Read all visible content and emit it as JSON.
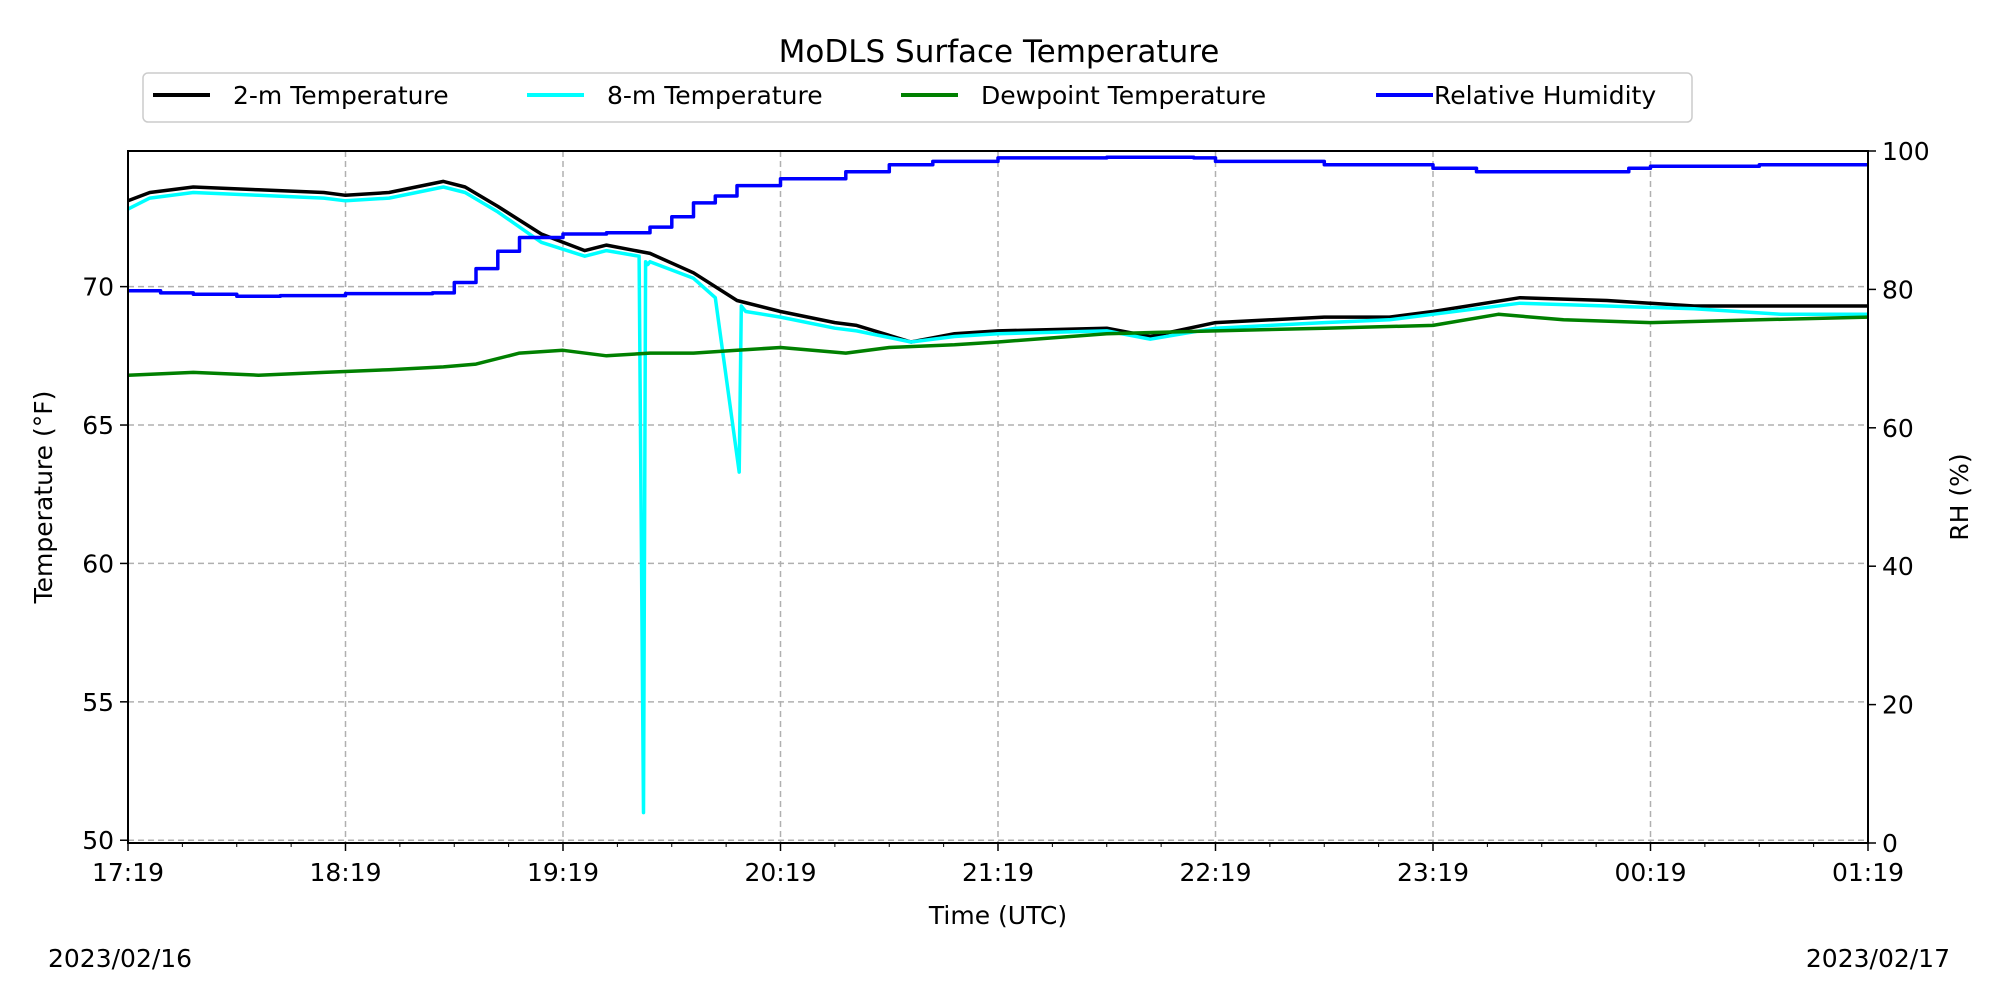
{
  "chart_data": {
    "type": "line",
    "title": "MoDLS Surface Temperature",
    "xlabel": "Time (UTC)",
    "ylabel": "Temperature ($^\\circ$F)",
    "ylabel_display": "Temperature (°F)",
    "y2label": "RH (%)",
    "x_ticks": [
      "17:19",
      "18:19",
      "19:19",
      "20:19",
      "21:19",
      "22:19",
      "23:19",
      "00:19",
      "01:19"
    ],
    "x_tick_hours": [
      0,
      1,
      2,
      3,
      4,
      5,
      6,
      7,
      8
    ],
    "xlim_hours": [
      0,
      8
    ],
    "ylim": [
      49.9,
      74.9
    ],
    "y_ticks": [
      50,
      55,
      60,
      65,
      70
    ],
    "y2lim": [
      0,
      100
    ],
    "y2_ticks": [
      0,
      20,
      40,
      60,
      80,
      100
    ],
    "grid": true,
    "legend_position": "top",
    "date_start": "2023/02/16",
    "date_end": "2023/02/17",
    "series": [
      {
        "name": "2-m Temperature",
        "color": "#000000",
        "axis": "left",
        "x_hours": [
          0.0,
          0.1,
          0.3,
          0.6,
          0.9,
          1.0,
          1.2,
          1.45,
          1.55,
          1.7,
          1.9,
          2.1,
          2.2,
          2.4,
          2.6,
          2.8,
          3.0,
          3.25,
          3.35,
          3.6,
          3.8,
          4.0,
          4.5,
          4.7,
          5.0,
          5.5,
          5.8,
          6.0,
          6.4,
          6.8,
          7.2,
          7.6,
          7.8,
          8.0
        ],
        "values": [
          73.1,
          73.4,
          73.6,
          73.5,
          73.4,
          73.3,
          73.4,
          73.8,
          73.6,
          72.9,
          71.9,
          71.3,
          71.5,
          71.2,
          70.5,
          69.5,
          69.1,
          68.7,
          68.6,
          68.0,
          68.3,
          68.4,
          68.5,
          68.2,
          68.7,
          68.9,
          68.9,
          69.1,
          69.6,
          69.5,
          69.3,
          69.3,
          69.3,
          69.3
        ]
      },
      {
        "name": "8-m Temperature",
        "color": "#00ffff",
        "axis": "left",
        "x_hours": [
          0.0,
          0.1,
          0.3,
          0.6,
          0.9,
          1.0,
          1.2,
          1.45,
          1.55,
          1.7,
          1.9,
          2.1,
          2.2,
          2.35,
          2.37,
          2.38,
          2.39,
          2.4,
          2.6,
          2.7,
          2.81,
          2.82,
          2.83,
          2.84,
          3.0,
          3.25,
          3.35,
          3.6,
          3.8,
          4.0,
          4.5,
          4.7,
          5.0,
          5.5,
          5.8,
          6.0,
          6.4,
          6.8,
          7.2,
          7.6,
          7.8,
          8.0
        ],
        "values": [
          72.8,
          73.2,
          73.4,
          73.3,
          73.2,
          73.1,
          73.2,
          73.6,
          73.4,
          72.7,
          71.6,
          71.1,
          71.3,
          71.1,
          51.0,
          70.9,
          70.8,
          70.9,
          70.3,
          69.6,
          63.3,
          69.3,
          69.2,
          69.1,
          68.9,
          68.5,
          68.4,
          68.0,
          68.2,
          68.3,
          68.4,
          68.1,
          68.5,
          68.7,
          68.8,
          69.0,
          69.4,
          69.3,
          69.2,
          69.0,
          69.0,
          69.0
        ]
      },
      {
        "name": "Dewpoint Temperature",
        "color": "#008000",
        "axis": "left",
        "x_hours": [
          0.0,
          0.3,
          0.6,
          0.9,
          1.2,
          1.45,
          1.6,
          1.8,
          2.0,
          2.2,
          2.4,
          2.6,
          2.8,
          3.0,
          3.3,
          3.5,
          3.8,
          4.0,
          4.5,
          5.0,
          5.5,
          6.0,
          6.3,
          6.6,
          7.0,
          7.5,
          8.0
        ],
        "values": [
          66.8,
          66.9,
          66.8,
          66.9,
          67.0,
          67.1,
          67.2,
          67.6,
          67.7,
          67.5,
          67.6,
          67.6,
          67.7,
          67.8,
          67.6,
          67.8,
          67.9,
          68.0,
          68.3,
          68.4,
          68.5,
          68.6,
          69.0,
          68.8,
          68.7,
          68.8,
          68.9
        ]
      },
      {
        "name": "Relative Humidity",
        "color": "#0000ff",
        "axis": "right",
        "x_hours": [
          0.0,
          0.15,
          0.3,
          0.5,
          0.7,
          1.0,
          1.2,
          1.4,
          1.5,
          1.6,
          1.7,
          1.8,
          2.0,
          2.2,
          2.4,
          2.5,
          2.6,
          2.7,
          2.8,
          3.0,
          3.3,
          3.5,
          3.7,
          4.0,
          4.5,
          4.9,
          5.0,
          5.5,
          6.0,
          6.2,
          6.5,
          6.9,
          7.0,
          7.5,
          8.0
        ],
        "values": [
          79.8,
          79.5,
          79.3,
          79.0,
          79.1,
          79.4,
          79.4,
          79.5,
          81.0,
          83.0,
          85.5,
          87.5,
          88.0,
          88.2,
          89.0,
          90.5,
          92.5,
          93.5,
          95.0,
          96.0,
          97.0,
          98.0,
          98.5,
          99.0,
          99.1,
          99.0,
          98.5,
          98.0,
          97.5,
          97.0,
          97.0,
          97.5,
          97.8,
          98.0,
          98.0
        ]
      }
    ]
  }
}
